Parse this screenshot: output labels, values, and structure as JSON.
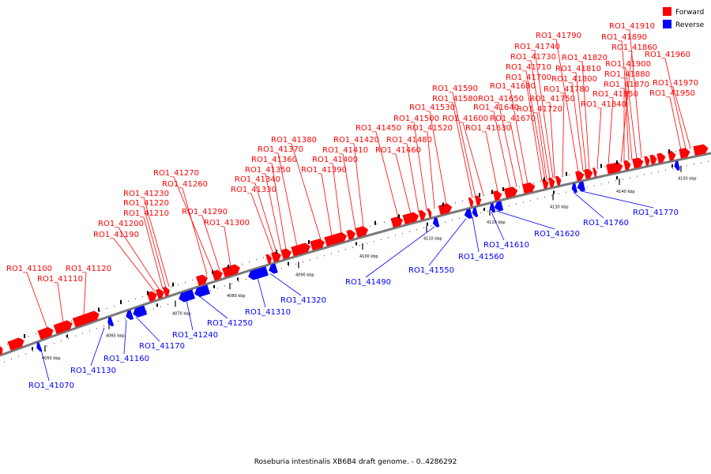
{
  "colors": {
    "forward": "#ff0000",
    "reverse": "#0000ff",
    "backbone": "#7a7a7a"
  },
  "legend": [
    {
      "key": "forward",
      "label": "Forward"
    },
    {
      "key": "reverse",
      "label": "Reverse"
    }
  ],
  "caption": "Roseburia intestinalis XB6B4 draft genome. - 0..4286292",
  "ticks": [
    "4050 kbp",
    "4060 kbp",
    "4070 kbp",
    "4080 kbp",
    "4090 kbp",
    "4100 kbp",
    "4110 kbp",
    "4120 kbp",
    "4130 kbp",
    "4140 kbp",
    "4150 kbp"
  ],
  "forward_labels": [
    "RO1_41100",
    "RO1_41110",
    "RO1_41120",
    "RO1_41190",
    "RO1_41200",
    "RO1_41210",
    "RO1_41220",
    "RO1_41230",
    "RO1_41260",
    "RO1_41270",
    "RO1_41290",
    "RO1_41300",
    "RO1_41330",
    "RO1_41340",
    "RO1_41350",
    "RO1_41360",
    "RO1_41370",
    "RO1_41380",
    "RO1_41390",
    "RO1_41400",
    "RO1_41410",
    "RO1_41420",
    "RO1_41450",
    "RO1_41460",
    "RO1_41480",
    "RO1_41500",
    "RO1_41520",
    "RO1_41530",
    "RO1_41580",
    "RO1_41590",
    "RO1_41600",
    "RO1_41630",
    "RO1_41640",
    "RO1_41650",
    "RO1_41670",
    "RO1_41680",
    "RO1_41700",
    "RO1_41710",
    "RO1_41720",
    "RO1_41730",
    "RO1_41740",
    "RO1_41750",
    "RO1_41780",
    "RO1_41790",
    "RO1_41800",
    "RO1_41810",
    "RO1_41820",
    "RO1_41840",
    "RO1_41850",
    "RO1_41860",
    "RO1_41870",
    "RO1_41880",
    "RO1_41890",
    "RO1_41900",
    "RO1_41910",
    "RO1_41950",
    "RO1_41960",
    "RO1_41970"
  ],
  "reverse_labels": [
    "RO1_41070",
    "RO1_41130",
    "RO1_41160",
    "RO1_41170",
    "RO1_41240",
    "RO1_41250",
    "RO1_41310",
    "RO1_41320",
    "RO1_41490",
    "RO1_41550",
    "RO1_41560",
    "RO1_41610",
    "RO1_41620",
    "RO1_41760",
    "RO1_41770"
  ]
}
